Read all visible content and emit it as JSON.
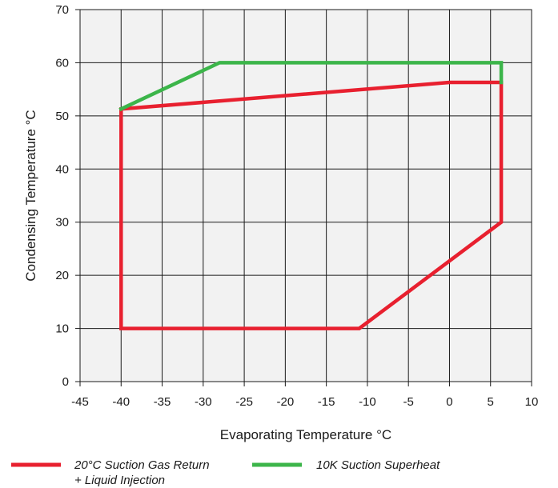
{
  "chart_data": {
    "type": "line",
    "xlabel": "Evaporating Temperature °C",
    "ylabel": "Condensing Temperature °C",
    "xlim": [
      -45,
      10
    ],
    "ylim": [
      0,
      70
    ],
    "xticks": [
      -45,
      -40,
      -35,
      -30,
      -25,
      -20,
      -15,
      -10,
      -5,
      0,
      5,
      10
    ],
    "yticks": [
      0,
      10,
      20,
      30,
      40,
      50,
      60,
      70
    ],
    "grid": true,
    "legend_position": "bottom",
    "series": [
      {
        "name": "20°C Suction Gas Return",
        "name_line2": "+ Liquid Injection",
        "color": "#e8202f",
        "points": [
          [
            -40,
            10
          ],
          [
            -11,
            10
          ],
          [
            6.3,
            30
          ],
          [
            6.3,
            56.3
          ],
          [
            0,
            56.3
          ],
          [
            -40,
            51.3
          ],
          [
            -40,
            10
          ]
        ]
      },
      {
        "name": "10K Suction Superheat",
        "color": "#3cb54a",
        "points": [
          [
            -40,
            51.3
          ],
          [
            -28,
            60
          ],
          [
            6.3,
            60
          ],
          [
            6.3,
            56.3
          ]
        ]
      }
    ]
  }
}
